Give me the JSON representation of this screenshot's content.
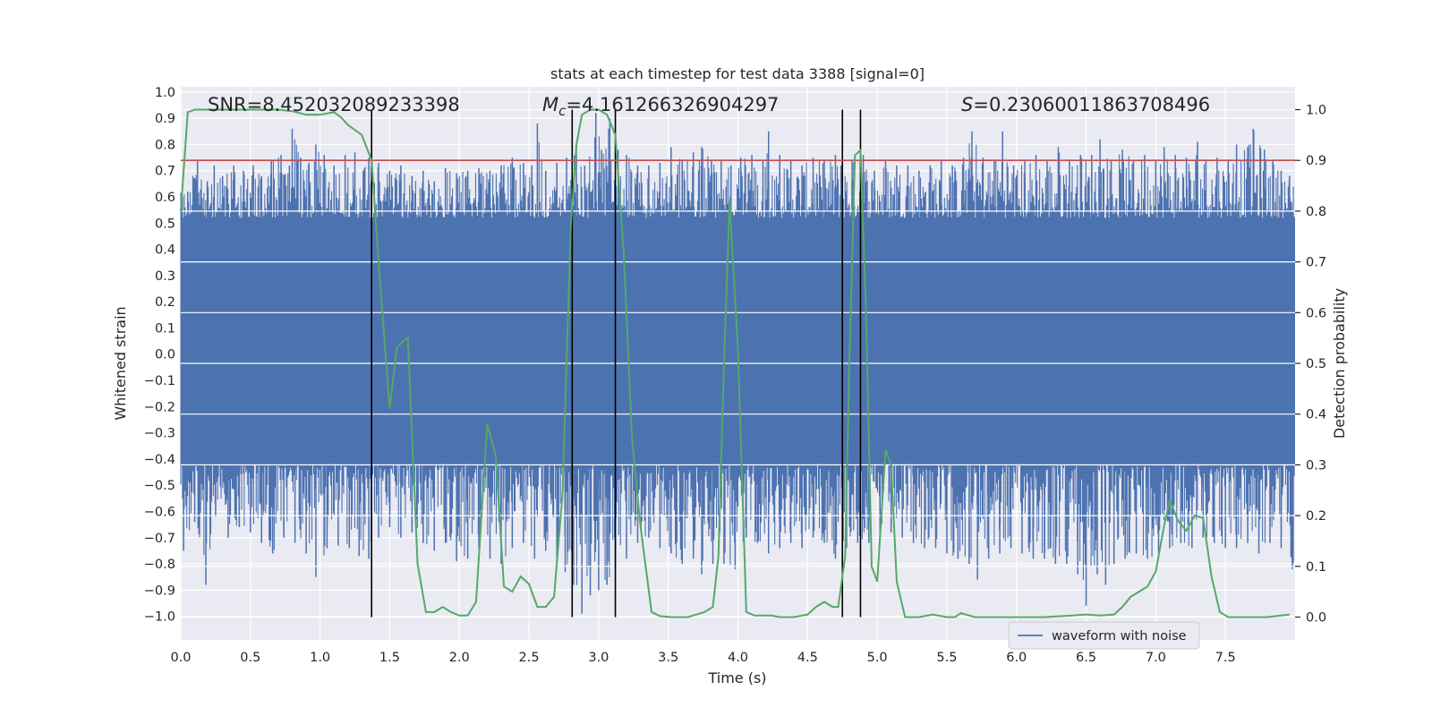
{
  "chart_data": {
    "type": "line",
    "title": "stats at each timestep for test data 3388 [signal=0]",
    "xlabel": "Time (s)",
    "ylabel_left": "Whitened strain",
    "ylabel_right": "Detection probability",
    "xlim": [
      0.0,
      8.0
    ],
    "ylim_left": [
      -1.09,
      1.02
    ],
    "ylim_right": [
      -0.045,
      1.045
    ],
    "x_ticks": [
      "0.0",
      "0.5",
      "1.0",
      "1.5",
      "2.0",
      "2.5",
      "3.0",
      "3.5",
      "4.0",
      "4.5",
      "5.0",
      "5.5",
      "6.0",
      "6.5",
      "7.0",
      "7.5"
    ],
    "y_ticks_left": [
      "1.0",
      "0.9",
      "0.8",
      "0.7",
      "0.6",
      "0.5",
      "0.4",
      "0.3",
      "0.2",
      "0.1",
      "0.0",
      "−0.1",
      "−0.2",
      "−0.3",
      "−0.4",
      "−0.5",
      "−0.6",
      "−0.7",
      "−0.8",
      "−0.9",
      "−1.0"
    ],
    "y_ticks_right": [
      "1.0",
      "0.9",
      "0.8",
      "0.7",
      "0.6",
      "0.5",
      "0.4",
      "0.3",
      "0.2",
      "0.1",
      "0.0"
    ],
    "grid": true,
    "legend": {
      "entries": [
        "waveform with noise"
      ],
      "placement": "lower-right"
    },
    "annotations": {
      "snr": "SNR=8.452032089233398",
      "mc_symbol": "M",
      "mc_sub": "c",
      "mc_value": "=4.161266326904297",
      "s_symbol": "S",
      "s_value": "=0.23060011863708496"
    },
    "threshold": {
      "axis": "right",
      "value": 0.9
    },
    "vertical_lines": [
      1.37,
      2.81,
      3.12,
      4.75,
      4.88
    ],
    "series": [
      {
        "name": "waveform with noise",
        "axis": "left",
        "color": "#4c72b0",
        "style": "dense noise trace, 0.0 s to 8.0 s",
        "core_band": [
          -0.42,
          0.52
        ],
        "peaks_upper": [
          [
            0.05,
            0.62
          ],
          [
            0.12,
            0.74
          ],
          [
            0.19,
            0.66
          ],
          [
            0.24,
            0.72
          ],
          [
            0.3,
            0.68
          ],
          [
            0.38,
            0.72
          ],
          [
            0.45,
            0.7
          ],
          [
            0.52,
            0.72
          ],
          [
            0.58,
            0.68
          ],
          [
            0.65,
            0.74
          ],
          [
            0.72,
            0.76
          ],
          [
            0.78,
            0.72
          ],
          [
            0.8,
            0.86
          ],
          [
            0.86,
            0.75
          ],
          [
            0.92,
            0.73
          ],
          [
            0.97,
            0.8
          ],
          [
            1.03,
            0.76
          ],
          [
            1.1,
            0.72
          ],
          [
            1.18,
            0.76
          ],
          [
            1.25,
            0.77
          ],
          [
            1.31,
            0.7
          ],
          [
            1.35,
            0.75
          ],
          [
            1.42,
            0.73
          ],
          [
            1.5,
            0.7
          ],
          [
            1.58,
            0.72
          ],
          [
            1.66,
            0.68
          ],
          [
            1.74,
            0.7
          ],
          [
            1.82,
            0.66
          ],
          [
            1.9,
            0.71
          ],
          [
            1.98,
            0.69
          ],
          [
            2.06,
            0.7
          ],
          [
            2.14,
            0.71
          ],
          [
            2.22,
            0.7
          ],
          [
            2.3,
            0.72
          ],
          [
            2.38,
            0.75
          ],
          [
            2.46,
            0.73
          ],
          [
            2.52,
            0.72
          ],
          [
            2.56,
            0.88
          ],
          [
            2.62,
            0.7
          ],
          [
            2.7,
            0.73
          ],
          [
            2.77,
            0.75
          ],
          [
            2.84,
            0.8
          ],
          [
            2.9,
            0.72
          ],
          [
            2.98,
            0.92
          ],
          [
            3.02,
            0.78
          ],
          [
            3.08,
            0.9
          ],
          [
            3.14,
            0.78
          ],
          [
            3.2,
            0.76
          ],
          [
            3.28,
            0.72
          ],
          [
            3.36,
            0.72
          ],
          [
            3.44,
            0.73
          ],
          [
            3.52,
            0.79
          ],
          [
            3.6,
            0.74
          ],
          [
            3.68,
            0.77
          ],
          [
            3.74,
            0.79
          ],
          [
            3.81,
            0.74
          ],
          [
            3.88,
            0.74
          ],
          [
            3.95,
            0.72
          ],
          [
            4.02,
            0.75
          ],
          [
            4.1,
            0.76
          ],
          [
            4.18,
            0.74
          ],
          [
            4.22,
            0.85
          ],
          [
            4.3,
            0.76
          ],
          [
            4.38,
            0.74
          ],
          [
            4.46,
            0.72
          ],
          [
            4.54,
            0.75
          ],
          [
            4.62,
            0.74
          ],
          [
            4.7,
            0.76
          ],
          [
            4.74,
            0.72
          ],
          [
            4.82,
            0.74
          ],
          [
            4.9,
            0.76
          ],
          [
            4.98,
            0.7
          ],
          [
            5.06,
            0.74
          ],
          [
            5.14,
            0.72
          ],
          [
            5.22,
            0.72
          ],
          [
            5.3,
            0.7
          ],
          [
            5.38,
            0.72
          ],
          [
            5.46,
            0.74
          ],
          [
            5.54,
            0.72
          ],
          [
            5.62,
            0.75
          ],
          [
            5.68,
            0.85
          ],
          [
            5.76,
            0.75
          ],
          [
            5.84,
            0.74
          ],
          [
            5.9,
            0.85
          ],
          [
            5.98,
            0.72
          ],
          [
            6.06,
            0.74
          ],
          [
            6.14,
            0.76
          ],
          [
            6.22,
            0.74
          ],
          [
            6.3,
            0.79
          ],
          [
            6.38,
            0.74
          ],
          [
            6.46,
            0.76
          ],
          [
            6.54,
            0.76
          ],
          [
            6.6,
            0.82
          ],
          [
            6.68,
            0.74
          ],
          [
            6.76,
            0.78
          ],
          [
            6.84,
            0.74
          ],
          [
            6.92,
            0.76
          ],
          [
            7.0,
            0.74
          ],
          [
            7.06,
            0.79
          ],
          [
            7.14,
            0.76
          ],
          [
            7.22,
            0.75
          ],
          [
            7.3,
            0.81
          ],
          [
            7.36,
            0.74
          ],
          [
            7.44,
            0.75
          ],
          [
            7.52,
            0.74
          ],
          [
            7.58,
            0.8
          ],
          [
            7.66,
            0.79
          ],
          [
            7.7,
            0.86
          ],
          [
            7.78,
            0.78
          ],
          [
            7.84,
            0.74
          ],
          [
            7.9,
            0.7
          ],
          [
            7.96,
            0.68
          ]
        ],
        "peaks_lower": [
          [
            0.02,
            -0.75
          ],
          [
            0.1,
            -0.64
          ],
          [
            0.18,
            -0.88
          ],
          [
            0.25,
            -0.62
          ],
          [
            0.34,
            -0.7
          ],
          [
            0.42,
            -0.66
          ],
          [
            0.5,
            -0.68
          ],
          [
            0.58,
            -0.72
          ],
          [
            0.66,
            -0.76
          ],
          [
            0.74,
            -0.7
          ],
          [
            0.82,
            -0.72
          ],
          [
            0.9,
            -0.76
          ],
          [
            0.97,
            -0.85
          ],
          [
            1.05,
            -0.74
          ],
          [
            1.13,
            -0.73
          ],
          [
            1.21,
            -0.74
          ],
          [
            1.28,
            -0.77
          ],
          [
            1.35,
            -0.78
          ],
          [
            1.42,
            -0.7
          ],
          [
            1.5,
            -0.66
          ],
          [
            1.58,
            -0.7
          ],
          [
            1.66,
            -0.68
          ],
          [
            1.74,
            -0.72
          ],
          [
            1.82,
            -0.75
          ],
          [
            1.9,
            -0.72
          ],
          [
            1.98,
            -0.79
          ],
          [
            2.06,
            -0.78
          ],
          [
            2.14,
            -0.74
          ],
          [
            2.22,
            -0.78
          ],
          [
            2.3,
            -0.8
          ],
          [
            2.38,
            -0.74
          ],
          [
            2.46,
            -0.72
          ],
          [
            2.54,
            -0.78
          ],
          [
            2.62,
            -0.75
          ],
          [
            2.7,
            -0.8
          ],
          [
            2.76,
            -0.83
          ],
          [
            2.82,
            -0.88
          ],
          [
            2.88,
            -0.99
          ],
          [
            2.94,
            -0.92
          ],
          [
            3.0,
            -0.9
          ],
          [
            3.06,
            -0.88
          ],
          [
            3.12,
            -0.82
          ],
          [
            3.2,
            -0.78
          ],
          [
            3.28,
            -0.72
          ],
          [
            3.36,
            -0.7
          ],
          [
            3.44,
            -0.74
          ],
          [
            3.52,
            -0.76
          ],
          [
            3.6,
            -0.8
          ],
          [
            3.68,
            -0.78
          ],
          [
            3.74,
            -0.84
          ],
          [
            3.82,
            -0.8
          ],
          [
            3.9,
            -0.8
          ],
          [
            3.98,
            -0.82
          ],
          [
            4.06,
            -0.7
          ],
          [
            4.14,
            -0.72
          ],
          [
            4.22,
            -0.76
          ],
          [
            4.3,
            -0.74
          ],
          [
            4.38,
            -0.72
          ],
          [
            4.46,
            -0.74
          ],
          [
            4.54,
            -0.7
          ],
          [
            4.62,
            -0.72
          ],
          [
            4.7,
            -0.78
          ],
          [
            4.78,
            -0.74
          ],
          [
            4.86,
            -0.72
          ],
          [
            4.94,
            -0.72
          ],
          [
            5.02,
            -0.7
          ],
          [
            5.1,
            -0.68
          ],
          [
            5.18,
            -0.7
          ],
          [
            5.26,
            -0.72
          ],
          [
            5.34,
            -0.74
          ],
          [
            5.42,
            -0.74
          ],
          [
            5.5,
            -0.76
          ],
          [
            5.58,
            -0.78
          ],
          [
            5.66,
            -0.8
          ],
          [
            5.72,
            -0.86
          ],
          [
            5.8,
            -0.78
          ],
          [
            5.88,
            -0.76
          ],
          [
            5.96,
            -0.74
          ],
          [
            6.04,
            -0.76
          ],
          [
            6.12,
            -0.78
          ],
          [
            6.2,
            -0.78
          ],
          [
            6.28,
            -0.8
          ],
          [
            6.36,
            -0.8
          ],
          [
            6.44,
            -0.84
          ],
          [
            6.5,
            -0.96
          ],
          [
            6.58,
            -0.84
          ],
          [
            6.64,
            -0.88
          ],
          [
            6.7,
            -0.8
          ],
          [
            6.78,
            -0.78
          ],
          [
            6.86,
            -0.76
          ],
          [
            6.94,
            -0.78
          ],
          [
            7.02,
            -0.76
          ],
          [
            7.1,
            -0.74
          ],
          [
            7.18,
            -0.72
          ],
          [
            7.26,
            -0.74
          ],
          [
            7.34,
            -0.7
          ],
          [
            7.42,
            -0.72
          ],
          [
            7.5,
            -0.74
          ],
          [
            7.58,
            -0.74
          ],
          [
            7.66,
            -0.72
          ],
          [
            7.74,
            -0.76
          ],
          [
            7.82,
            -0.72
          ],
          [
            7.9,
            -0.74
          ],
          [
            7.98,
            -0.82
          ]
        ]
      },
      {
        "name": "detection probability",
        "axis": "right",
        "color": "#55a868",
        "x": [
          0.0,
          0.05,
          0.1,
          0.2,
          0.3,
          0.4,
          0.5,
          0.6,
          0.7,
          0.8,
          0.9,
          1.0,
          1.1,
          1.15,
          1.2,
          1.25,
          1.3,
          1.37,
          1.42,
          1.5,
          1.55,
          1.6,
          1.63,
          1.7,
          1.76,
          1.82,
          1.88,
          1.94,
          2.0,
          2.06,
          2.12,
          2.2,
          2.26,
          2.32,
          2.38,
          2.44,
          2.5,
          2.56,
          2.62,
          2.68,
          2.74,
          2.8,
          2.84,
          2.88,
          2.94,
          3.0,
          3.06,
          3.12,
          3.18,
          3.24,
          3.3,
          3.38,
          3.44,
          3.52,
          3.58,
          3.64,
          3.7,
          3.76,
          3.82,
          3.86,
          3.9,
          3.94,
          4.0,
          4.06,
          4.12,
          4.18,
          4.24,
          4.3,
          4.4,
          4.5,
          4.56,
          4.62,
          4.68,
          4.72,
          4.77,
          4.8,
          4.84,
          4.88,
          4.92,
          4.96,
          5.0,
          5.06,
          5.1,
          5.14,
          5.2,
          5.3,
          5.4,
          5.5,
          5.56,
          5.6,
          5.7,
          5.8,
          6.0,
          6.2,
          6.4,
          6.5,
          6.6,
          6.7,
          6.76,
          6.82,
          6.88,
          6.94,
          7.0,
          7.06,
          7.1,
          7.16,
          7.22,
          7.28,
          7.34,
          7.4,
          7.46,
          7.52,
          7.6,
          7.7,
          7.8,
          7.9,
          7.96
        ],
        "values": [
          0.8,
          0.995,
          1.0,
          1.0,
          1.0,
          1.0,
          1.0,
          1.0,
          1.0,
          0.997,
          0.99,
          0.99,
          0.995,
          0.985,
          0.97,
          0.96,
          0.95,
          0.9,
          0.7,
          0.41,
          0.53,
          0.545,
          0.55,
          0.105,
          0.01,
          0.01,
          0.02,
          0.01,
          0.003,
          0.003,
          0.03,
          0.38,
          0.32,
          0.06,
          0.05,
          0.08,
          0.065,
          0.02,
          0.02,
          0.04,
          0.24,
          0.77,
          0.93,
          0.99,
          1.0,
          1.0,
          0.99,
          0.95,
          0.72,
          0.35,
          0.18,
          0.01,
          0.002,
          0.0,
          0.0,
          0.0,
          0.005,
          0.01,
          0.02,
          0.12,
          0.5,
          0.82,
          0.53,
          0.01,
          0.003,
          0.003,
          0.003,
          0.0,
          0.0,
          0.005,
          0.02,
          0.03,
          0.02,
          0.02,
          0.12,
          0.5,
          0.91,
          0.92,
          0.6,
          0.1,
          0.07,
          0.33,
          0.3,
          0.07,
          0.0,
          0.0,
          0.005,
          0.0,
          0.0,
          0.008,
          0.0,
          0.0,
          0.0,
          0.0,
          0.003,
          0.005,
          0.003,
          0.005,
          0.02,
          0.04,
          0.05,
          0.06,
          0.09,
          0.18,
          0.23,
          0.19,
          0.17,
          0.2,
          0.195,
          0.08,
          0.01,
          0.0,
          0.0,
          0.0,
          0.0,
          0.003,
          0.005
        ]
      }
    ]
  }
}
